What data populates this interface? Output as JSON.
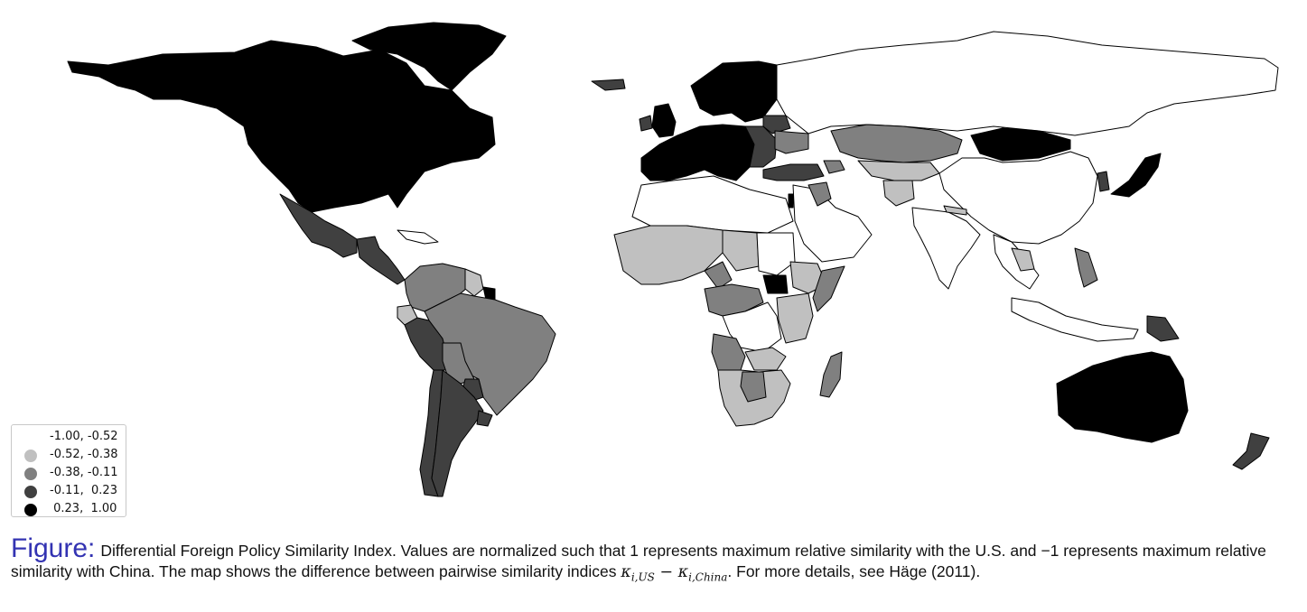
{
  "legend": {
    "items": [
      {
        "label": "-1.00, -0.52",
        "color": "#ffffff"
      },
      {
        "label": "-0.52, -0.38",
        "color": "#c0c0c0"
      },
      {
        "label": "-0.38, -0.11",
        "color": "#808080"
      },
      {
        "label": "-0.11,  0.23",
        "color": "#404040"
      },
      {
        "label": " 0.23,  1.00",
        "color": "#000000"
      }
    ]
  },
  "caption": {
    "lead": "Figure:",
    "text_1": "Differential Foreign Policy Similarity Index. Values are normalized such that 1 represents maximum relative similarity with the U.S. and −1 represents maximum relative similarity with China. The map shows the difference between pairwise similarity indices ",
    "kappa_1": "κ",
    "sub_1": "i,US",
    "minus": " − ",
    "kappa_2": "κ",
    "sub_2": "i,China",
    "text_2": ". For more details, see Häge (2011)."
  },
  "map": {
    "regions": [
      {
        "id": "north-america",
        "color": "#000000"
      },
      {
        "id": "greenland",
        "color": "#000000"
      },
      {
        "id": "mexico",
        "color": "#404040"
      },
      {
        "id": "central-america",
        "color": "#404040"
      },
      {
        "id": "caribbean",
        "color": "#ffffff"
      },
      {
        "id": "venezuela-colombia",
        "color": "#808080"
      },
      {
        "id": "guyana",
        "color": "#c0c0c0"
      },
      {
        "id": "french-guiana",
        "color": "#000000"
      },
      {
        "id": "ecuador",
        "color": "#c0c0c0"
      },
      {
        "id": "peru",
        "color": "#404040"
      },
      {
        "id": "brazil",
        "color": "#808080"
      },
      {
        "id": "bolivia",
        "color": "#808080"
      },
      {
        "id": "paraguay",
        "color": "#404040"
      },
      {
        "id": "chile",
        "color": "#404040"
      },
      {
        "id": "argentina",
        "color": "#404040"
      },
      {
        "id": "uruguay",
        "color": "#404040"
      },
      {
        "id": "iceland",
        "color": "#404040"
      },
      {
        "id": "ireland",
        "color": "#404040"
      },
      {
        "id": "uk",
        "color": "#000000"
      },
      {
        "id": "scandinavia",
        "color": "#000000"
      },
      {
        "id": "western-europe",
        "color": "#000000"
      },
      {
        "id": "eastern-europe",
        "color": "#404040"
      },
      {
        "id": "belarus",
        "color": "#404040"
      },
      {
        "id": "ukraine",
        "color": "#808080"
      },
      {
        "id": "turkey",
        "color": "#404040"
      },
      {
        "id": "caucasus",
        "color": "#808080"
      },
      {
        "id": "russia",
        "color": "#ffffff"
      },
      {
        "id": "kazakhstan",
        "color": "#808080"
      },
      {
        "id": "central-asia",
        "color": "#c0c0c0"
      },
      {
        "id": "afghanistan",
        "color": "#c0c0c0"
      },
      {
        "id": "mongolia",
        "color": "#000000"
      },
      {
        "id": "china",
        "color": "#ffffff"
      },
      {
        "id": "korea",
        "color": "#404040"
      },
      {
        "id": "japan",
        "color": "#000000"
      },
      {
        "id": "middle-east",
        "color": "#ffffff"
      },
      {
        "id": "iraq",
        "color": "#808080"
      },
      {
        "id": "israel",
        "color": "#000000"
      },
      {
        "id": "india",
        "color": "#ffffff"
      },
      {
        "id": "nepal",
        "color": "#c0c0c0"
      },
      {
        "id": "southeast-asia",
        "color": "#ffffff"
      },
      {
        "id": "thailand",
        "color": "#c0c0c0"
      },
      {
        "id": "philippines",
        "color": "#808080"
      },
      {
        "id": "indonesia",
        "color": "#ffffff"
      },
      {
        "id": "png",
        "color": "#404040"
      },
      {
        "id": "australia",
        "color": "#000000"
      },
      {
        "id": "new-zealand",
        "color": "#404040"
      },
      {
        "id": "north-africa",
        "color": "#ffffff"
      },
      {
        "id": "west-africa",
        "color": "#c0c0c0"
      },
      {
        "id": "nigeria",
        "color": "#808080"
      },
      {
        "id": "chad",
        "color": "#c0c0c0"
      },
      {
        "id": "sudan",
        "color": "#ffffff"
      },
      {
        "id": "south-sudan",
        "color": "#000000"
      },
      {
        "id": "ethiopia",
        "color": "#c0c0c0"
      },
      {
        "id": "somalia",
        "color": "#808080"
      },
      {
        "id": "central-africa",
        "color": "#808080"
      },
      {
        "id": "congo-drc",
        "color": "#ffffff"
      },
      {
        "id": "east-africa",
        "color": "#c0c0c0"
      },
      {
        "id": "angola",
        "color": "#808080"
      },
      {
        "id": "zambia",
        "color": "#c0c0c0"
      },
      {
        "id": "southern-africa",
        "color": "#c0c0c0"
      },
      {
        "id": "botswana",
        "color": "#808080"
      },
      {
        "id": "madagascar",
        "color": "#808080"
      }
    ]
  }
}
